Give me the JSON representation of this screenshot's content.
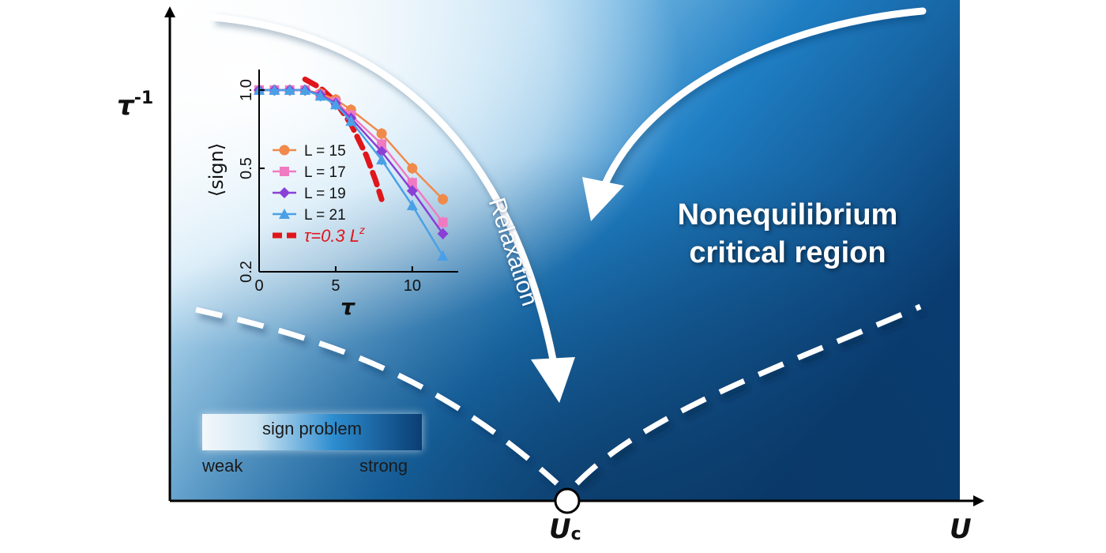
{
  "diagram": {
    "axis_y_label": "τ",
    "axis_y_exponent": "-1",
    "axis_x_label": "U",
    "critical_point_main": "U",
    "critical_point_sub": "c",
    "region_label": "Nonequilibrium critical region",
    "arrow_label": "Relaxation",
    "legend": {
      "title": "sign problem",
      "low": "weak",
      "high": "strong",
      "gradient_colors": [
        "#f4f8fb",
        "#cfe6f3",
        "#2c8ccf",
        "#0a3d72"
      ]
    },
    "colors": {
      "background_dark": "#0a3d72",
      "background_mid": "#1f7fc4",
      "background_light": "#e8f4fb",
      "phase_boundary": "#ffffff",
      "arrow": "#ffffff"
    }
  },
  "chart_data": {
    "type": "line",
    "xlabel": "τ",
    "ylabel": "⟨sign⟩",
    "xlim": [
      0,
      13
    ],
    "ylim": [
      0.2,
      1.2
    ],
    "y_scale": "log",
    "x_ticks": [
      0,
      5,
      10
    ],
    "y_ticks": [
      0.2,
      0.5,
      1.0
    ],
    "y_tick_labels": [
      "0.2",
      "0.5",
      "1.0"
    ],
    "legend_position": "lower-left",
    "series": [
      {
        "name": "L = 15",
        "marker": "circle",
        "color": "#f08a4b",
        "x": [
          0,
          1,
          2,
          3,
          4,
          5,
          6,
          8,
          10,
          12
        ],
        "y": [
          1.0,
          1.0,
          1.0,
          1.0,
          0.97,
          0.92,
          0.84,
          0.68,
          0.5,
          0.38
        ]
      },
      {
        "name": "L = 17",
        "marker": "square",
        "color": "#f07ac2",
        "x": [
          0,
          1,
          2,
          3,
          4,
          5,
          6,
          8,
          10,
          12
        ],
        "y": [
          1.0,
          1.0,
          1.0,
          1.0,
          0.96,
          0.9,
          0.8,
          0.62,
          0.44,
          0.31
        ]
      },
      {
        "name": "L = 19",
        "marker": "diamond",
        "color": "#8a3fd6",
        "x": [
          0,
          1,
          2,
          3,
          4,
          5,
          6,
          8,
          10,
          12
        ],
        "y": [
          1.0,
          1.0,
          1.0,
          1.0,
          0.96,
          0.89,
          0.78,
          0.58,
          0.41,
          0.28
        ]
      },
      {
        "name": "L = 21",
        "marker": "triangle",
        "color": "#4aa0e6",
        "x": [
          0,
          1,
          2,
          3,
          4,
          5,
          6,
          8,
          10,
          12
        ],
        "y": [
          1.0,
          1.0,
          1.0,
          1.0,
          0.95,
          0.88,
          0.76,
          0.54,
          0.36,
          0.23
        ]
      }
    ],
    "fit": {
      "label_prefix": "τ=0.3 ",
      "label_var": "L",
      "label_exp": "z",
      "color": "#e0161b",
      "x": [
        3,
        4,
        5,
        6,
        7,
        7.6,
        8
      ],
      "y": [
        1.1,
        1.02,
        0.9,
        0.74,
        0.56,
        0.45,
        0.38
      ]
    }
  }
}
